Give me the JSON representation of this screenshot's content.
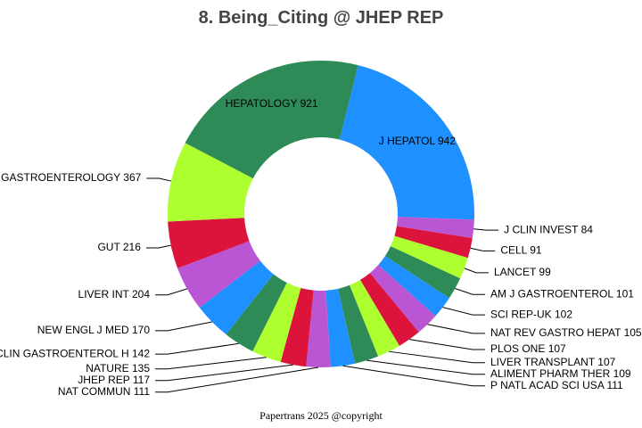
{
  "chart_data": {
    "type": "pie",
    "subtype": "donut",
    "title": "8. Being_Citing @ JHEP REP",
    "footer": "Papertrans 2025 @copyright",
    "label_format": "{name} {value}",
    "slices": [
      {
        "name": "J HEPATOL",
        "value": 942,
        "color": "#1E90FF"
      },
      {
        "name": "J CLIN INVEST",
        "value": 84,
        "color": "#BA55D3"
      },
      {
        "name": "CELL",
        "value": 91,
        "color": "#DC143C"
      },
      {
        "name": "LANCET",
        "value": 99,
        "color": "#ADFF2F"
      },
      {
        "name": "AM J GASTROENTEROL",
        "value": 101,
        "color": "#2E8B57"
      },
      {
        "name": "SCI REP-UK",
        "value": 102,
        "color": "#1E90FF"
      },
      {
        "name": "NAT REV GASTRO HEPAT",
        "value": 105,
        "color": "#BA55D3"
      },
      {
        "name": "PLOS ONE",
        "value": 107,
        "color": "#DC143C"
      },
      {
        "name": "LIVER TRANSPLANT",
        "value": 107,
        "color": "#ADFF2F"
      },
      {
        "name": "ALIMENT PHARM THER",
        "value": 109,
        "color": "#2E8B57"
      },
      {
        "name": "P NATL ACAD SCI USA",
        "value": 111,
        "color": "#1E90FF"
      },
      {
        "name": "NAT COMMUN",
        "value": 111,
        "color": "#BA55D3"
      },
      {
        "name": "JHEP REP",
        "value": 117,
        "color": "#DC143C"
      },
      {
        "name": "NATURE",
        "value": 135,
        "color": "#ADFF2F"
      },
      {
        "name": "CLIN GASTROENTEROL H",
        "value": 142,
        "color": "#2E8B57"
      },
      {
        "name": "NEW ENGL J MED",
        "value": 170,
        "color": "#1E90FF"
      },
      {
        "name": "LIVER INT",
        "value": 204,
        "color": "#BA55D3"
      },
      {
        "name": "GUT",
        "value": 216,
        "color": "#DC143C"
      },
      {
        "name": "GASTROENTEROLOGY",
        "value": 367,
        "color": "#ADFF2F"
      },
      {
        "name": "HEPATOLOGY",
        "value": 921,
        "color": "#2E8B57"
      }
    ]
  }
}
